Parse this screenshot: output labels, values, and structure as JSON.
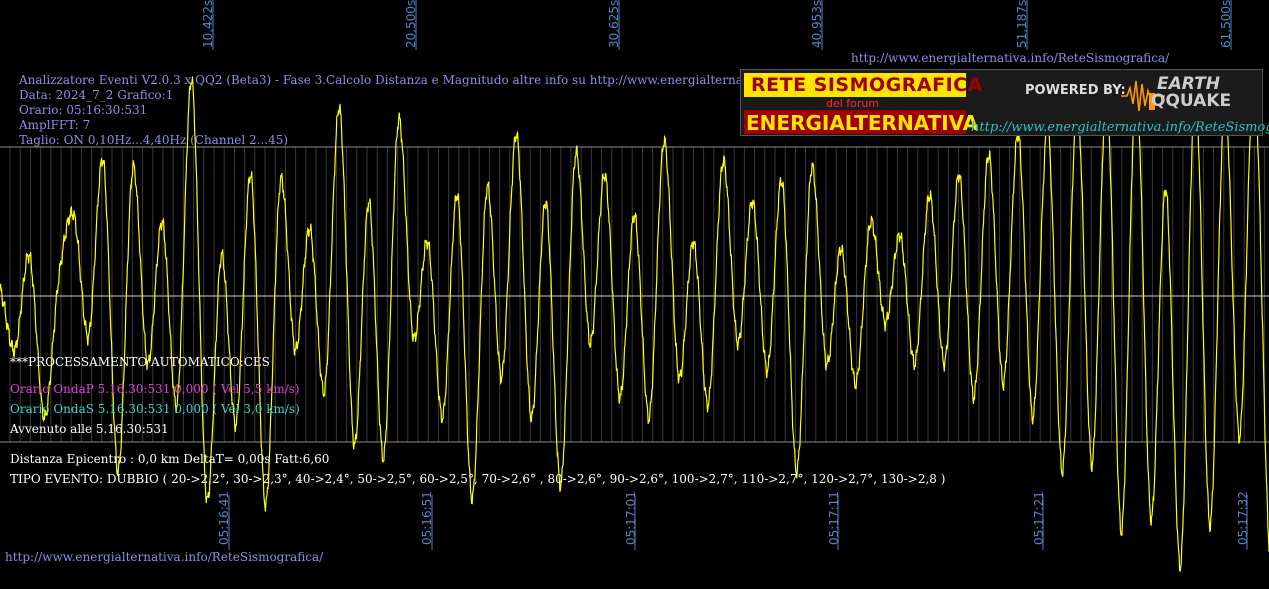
{
  "header": {
    "url_top": "http://www.energialternativa.info/ReteSismografica/",
    "lines": [
      "Analizzatore Eventi V2.0.3 x QQ2 (Beta3) - Fase 3.Calcolo Distanza e Magnitudo altre info su http://www.energialternativa.info/ReteSism",
      "Data: 2024_7_2 Grafico:1",
      "Orario: 05:16:30:531",
      "AmplFFT: 7",
      "Taglio: ON 0,10Hz...4,40Hz       (Channel 2...45)"
    ]
  },
  "logo": {
    "rete": "RETE SISMOGRAFICA",
    "forum": "del forum",
    "energialternativa": "ENERGIALTERNATIVA",
    "powered_by": "POWERED BY:",
    "earth": "EARTH",
    "qquake": "QQUAKE",
    "url": "http://www.energialternativa.info/ReteSismografica"
  },
  "info": {
    "processing": "***PROCESSAMENTO AUTOMATICO:CES",
    "onda_p": "Orario OndaP 5.16.30:531  0,000 ( Vel 5,5 km/s)",
    "onda_s": "Orario OndaS 5.16.30:531  0,000 ( Vel 3,0 km/s)",
    "avvenuto": "Avvenuto alle 5.16.30:531",
    "distanza": "Distanza Epicentro : 0,0 km DeltaT= 0,00s  Fatt:6,60",
    "tipo_evento": "TIPO EVENTO: DUBBIO ( 20->2,2°, 30->2,3°, 40->2,4°, 50->2,5°, 60->2,5°, 70->2,6° , 80->2,6°, 90->2,6°, 100->2,7°, 110->2,7°, 120->2,7°, 130->2,8 )"
  },
  "url_bottom": "http://www.energialternativa.info/ReteSismografica/",
  "colors": {
    "background": "#000000",
    "trace": "#ffff00",
    "grid": "#8c8c8c",
    "title_text": "#8a90e8",
    "tick_text": "#4e86c9",
    "onda_p": "#e040e0",
    "onda_s": "#3ad6d6",
    "white_text": "#ffffff"
  },
  "chart_data": {
    "type": "line",
    "top_axis_ticks": [
      "10,422s",
      "20,500s",
      "30,625s",
      "40,953s",
      "51,187s",
      "61,500s"
    ],
    "bottom_axis_ticks": [
      "05:16:41",
      "05:16:51",
      "05:17:01",
      "05:17:11",
      "05:17:21",
      "05:17:32"
    ],
    "grid": true,
    "series": [
      {
        "values": [
          0.05,
          -0.4,
          0.3,
          -0.9,
          0.15,
          0.6,
          -0.3,
          1.0,
          -1.3,
          0.95,
          -0.5,
          0.55,
          -0.8,
          1.6,
          -1.5,
          0.3,
          -0.95,
          0.9,
          -1.55,
          0.85,
          -0.4,
          0.5,
          -0.7,
          1.4,
          -1.1,
          0.7,
          -1.2,
          1.3,
          -0.3,
          0.4,
          -0.9,
          0.75,
          -1.5,
          0.8,
          -0.6,
          1.2,
          -0.9,
          0.7,
          -1.4,
          1.05,
          -0.35,
          0.9,
          -0.75,
          0.6,
          -0.9,
          1.15,
          -0.6,
          0.4,
          -0.8,
          1.0,
          -0.35,
          0.7,
          -0.55,
          0.85,
          -1.3,
          0.95,
          -0.5,
          0.35,
          -0.65,
          0.55,
          -0.2,
          0.45,
          -0.5,
          0.75,
          -0.5,
          0.9,
          -0.75,
          1.05,
          -0.65,
          1.2,
          -0.9,
          1.25,
          -1.3,
          1.45,
          -1.25,
          1.5,
          -1.75,
          1.6,
          -1.65,
          0.8,
          -2.0,
          1.55,
          -1.7,
          1.45,
          -1.05,
          1.65,
          -1.85
        ]
      }
    ]
  }
}
